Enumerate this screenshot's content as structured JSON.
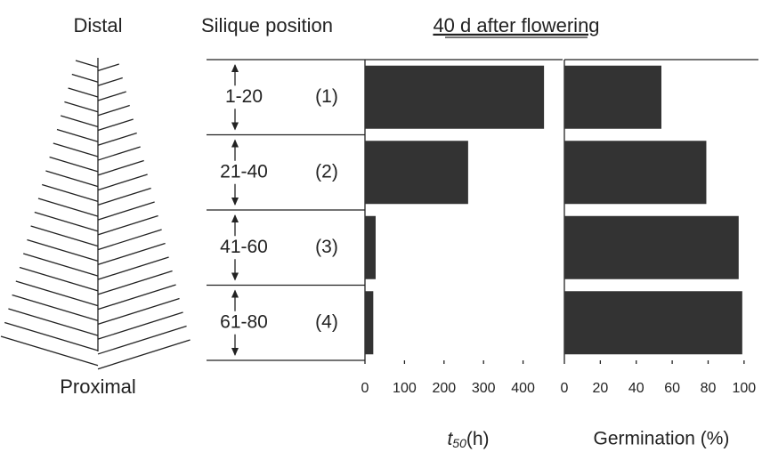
{
  "figure": {
    "top_label": "Distal",
    "bottom_label": "Proximal",
    "position_header": "Silique position",
    "title": "40 d after flowering"
  },
  "chart_data": [
    {
      "type": "bar",
      "orientation": "horizontal",
      "categories": [
        "1-20",
        "21-40",
        "41-60",
        "61-80"
      ],
      "position_numbers": [
        "(1)",
        "(2)",
        "(3)",
        "(4)"
      ],
      "values": [
        453,
        261,
        27,
        21
      ],
      "color": "#333333",
      "xlim": [
        0,
        500
      ],
      "xticks": [
        0,
        100,
        200,
        300,
        400
      ],
      "xlabel": {
        "symbol": "t",
        "subscript": "50",
        "unit": "(h)"
      }
    },
    {
      "type": "bar",
      "orientation": "horizontal",
      "values": [
        54,
        79,
        97,
        99
      ],
      "color": "#333333",
      "xlim": [
        0,
        108
      ],
      "xticks": [
        0,
        20,
        40,
        60,
        80,
        100
      ],
      "xlabel": "Germination (%)"
    }
  ]
}
